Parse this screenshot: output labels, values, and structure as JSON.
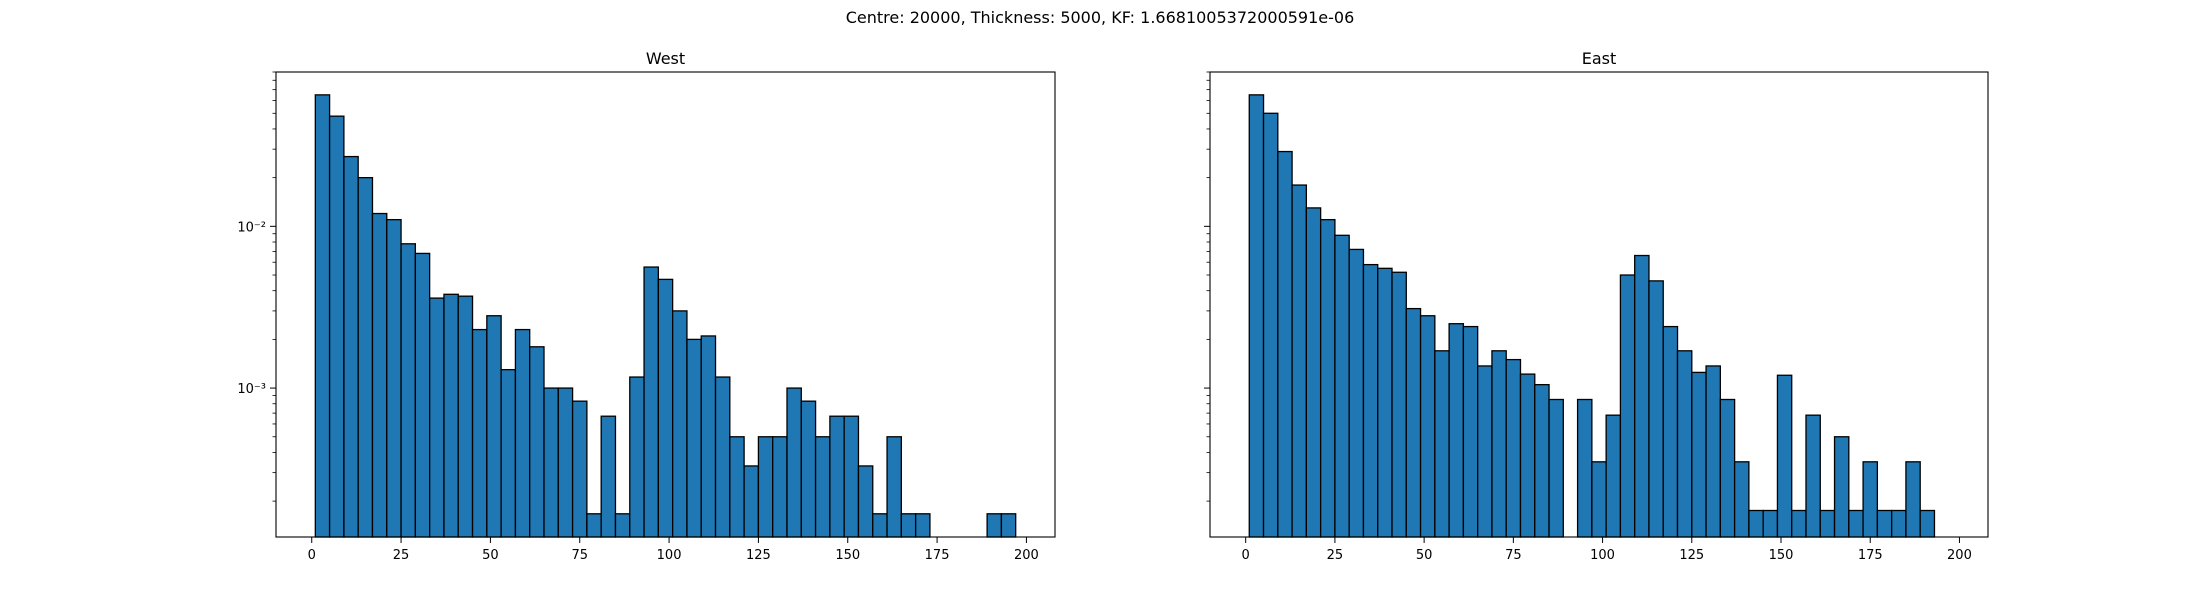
{
  "suptitle": "Centre: 20000, Thickness: 5000, KF: 1.6681005372000591e-06",
  "chart_data": [
    {
      "type": "bar",
      "title": "West",
      "xlabel": "",
      "ylabel": "",
      "yscale": "log",
      "xlim": [
        -10,
        208
      ],
      "ylim": [
        0.00012,
        0.09
      ],
      "xticks": [
        0,
        25,
        50,
        75,
        100,
        125,
        150,
        175,
        200
      ],
      "yticks": [
        {
          "value": 0.01,
          "label": "10⁻²"
        },
        {
          "value": 0.001,
          "label": "10⁻³"
        }
      ],
      "bar_color": "#1f77b4",
      "bin_width": 4.0,
      "bins_start": [
        1,
        5,
        9,
        13,
        17,
        21,
        25,
        29,
        33,
        37,
        41,
        45,
        49,
        53,
        57,
        61,
        65,
        69,
        73,
        77,
        81,
        85,
        89,
        93,
        97,
        101,
        105,
        109,
        113,
        117,
        121,
        125,
        129,
        133,
        137,
        141,
        145,
        149,
        153,
        157,
        161,
        165,
        169,
        173,
        177,
        181,
        185,
        189,
        193,
        197
      ],
      "values": [
        0.065,
        0.048,
        0.027,
        0.02,
        0.012,
        0.011,
        0.0078,
        0.0068,
        0.0036,
        0.0038,
        0.0037,
        0.0023,
        0.0028,
        0.0013,
        0.0023,
        0.0018,
        0.001,
        0.001,
        0.00083,
        0.000167,
        0.00067,
        0.000167,
        0.00117,
        0.0056,
        0.0047,
        0.003,
        0.002,
        0.0021,
        0.00117,
        0.0005,
        0.00033,
        0.0005,
        0.0005,
        0.001,
        0.00083,
        0.0005,
        0.00067,
        0.00067,
        0.00033,
        0.000167,
        0.0005,
        0.000167,
        0.000167,
        0,
        0,
        0,
        0,
        0.000167,
        0.000167,
        0
      ]
    },
    {
      "type": "bar",
      "title": "East",
      "xlabel": "",
      "ylabel": "",
      "yscale": "log",
      "xlim": [
        -10,
        208
      ],
      "ylim": [
        0.00012,
        0.09
      ],
      "xticks": [
        0,
        25,
        50,
        75,
        100,
        125,
        150,
        175,
        200
      ],
      "yticks": [
        {
          "value": 0.01,
          "label": ""
        },
        {
          "value": 0.001,
          "label": ""
        }
      ],
      "bar_color": "#1f77b4",
      "bin_width": 4.0,
      "bins_start": [
        1,
        5,
        9,
        13,
        17,
        21,
        25,
        29,
        33,
        37,
        41,
        45,
        49,
        53,
        57,
        61,
        65,
        69,
        73,
        77,
        81,
        85,
        89,
        93,
        97,
        101,
        105,
        109,
        113,
        117,
        121,
        125,
        129,
        133,
        137,
        141,
        145,
        149,
        153,
        157,
        161,
        165,
        169,
        173,
        177,
        181,
        185,
        189,
        193,
        197
      ],
      "values": [
        0.065,
        0.05,
        0.029,
        0.018,
        0.013,
        0.011,
        0.0088,
        0.0072,
        0.0058,
        0.0055,
        0.0052,
        0.0031,
        0.0028,
        0.0017,
        0.0025,
        0.0024,
        0.00137,
        0.0017,
        0.0015,
        0.00122,
        0.00105,
        0.00085,
        0,
        0.00085,
        0.00035,
        0.00068,
        0.005,
        0.0066,
        0.0046,
        0.0024,
        0.0017,
        0.00125,
        0.00137,
        0.00085,
        0.00035,
        0.000175,
        0.000175,
        0.0012,
        0.000175,
        0.00068,
        0.000175,
        0.0005,
        0.000175,
        0.00035,
        0.000175,
        0.000175,
        0.00035,
        0.000175,
        0,
        0
      ]
    }
  ]
}
